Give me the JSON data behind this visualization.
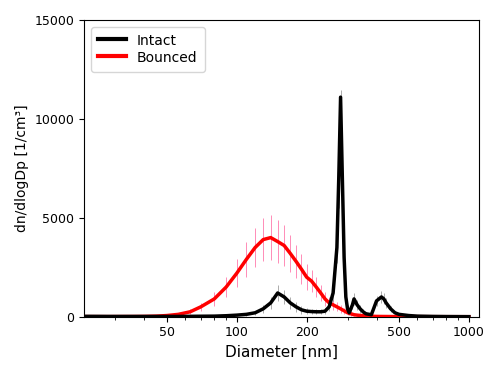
{
  "title": "",
  "xlabel": "Diameter [nm]",
  "ylabel": "dn/dlogDp [1/cm³]",
  "ylim": [
    0,
    15000
  ],
  "xlim": [
    22,
    1100
  ],
  "xticks": [
    50,
    100,
    200,
    500,
    1000
  ],
  "yticks": [
    0,
    5000,
    10000,
    15000
  ],
  "legend_entries": [
    "Intact",
    "Bounced"
  ],
  "line_colors": [
    "black",
    "red"
  ],
  "error_colors": [
    "#888888",
    "#ff80b0"
  ],
  "background_color": "#ffffff",
  "linewidth_intact": 2.5,
  "linewidth_bounced": 2.5,
  "intact_x": [
    22,
    25,
    28,
    32,
    36,
    40,
    45,
    50,
    56,
    63,
    70,
    80,
    90,
    100,
    110,
    120,
    130,
    140,
    150,
    160,
    170,
    180,
    190,
    200,
    210,
    220,
    230,
    240,
    250,
    260,
    270,
    275,
    280,
    285,
    290,
    295,
    300,
    305,
    310,
    315,
    320,
    330,
    340,
    350,
    360,
    380,
    400,
    420,
    430,
    440,
    460,
    480,
    500,
    550,
    600,
    700,
    800,
    1000
  ],
  "intact_y": [
    20,
    18,
    15,
    15,
    15,
    15,
    15,
    15,
    15,
    20,
    25,
    30,
    50,
    80,
    120,
    200,
    400,
    700,
    1200,
    1000,
    700,
    500,
    350,
    280,
    260,
    250,
    250,
    280,
    500,
    1200,
    3500,
    7000,
    11100,
    7000,
    3000,
    1000,
    400,
    200,
    400,
    600,
    900,
    600,
    400,
    250,
    150,
    100,
    800,
    1000,
    900,
    700,
    400,
    200,
    120,
    60,
    30,
    15,
    8,
    3
  ],
  "intact_err": [
    10,
    8,
    8,
    8,
    8,
    8,
    8,
    8,
    8,
    10,
    12,
    15,
    25,
    40,
    60,
    100,
    200,
    300,
    400,
    350,
    300,
    250,
    200,
    150,
    130,
    120,
    120,
    140,
    200,
    400,
    800,
    1500,
    350,
    1500,
    800,
    400,
    200,
    100,
    150,
    200,
    300,
    250,
    200,
    120,
    80,
    50,
    250,
    300,
    280,
    250,
    150,
    80,
    50,
    25,
    15,
    8,
    4,
    2
  ],
  "bounced_x": [
    22,
    25,
    28,
    32,
    36,
    40,
    45,
    50,
    56,
    63,
    70,
    80,
    90,
    100,
    110,
    120,
    130,
    140,
    150,
    160,
    170,
    180,
    190,
    200,
    210,
    220,
    230,
    240,
    250,
    260,
    270,
    280,
    290,
    300,
    310,
    320,
    330,
    350,
    380,
    400,
    500,
    700,
    1000
  ],
  "bounced_y": [
    5,
    5,
    5,
    8,
    10,
    15,
    30,
    60,
    120,
    250,
    500,
    900,
    1500,
    2200,
    2900,
    3500,
    3900,
    4000,
    3800,
    3600,
    3200,
    2800,
    2400,
    2000,
    1800,
    1500,
    1200,
    900,
    700,
    600,
    500,
    400,
    300,
    200,
    150,
    100,
    80,
    50,
    25,
    15,
    5,
    2,
    1
  ],
  "bounced_err": [
    3,
    3,
    3,
    5,
    6,
    8,
    15,
    30,
    60,
    120,
    200,
    350,
    500,
    700,
    900,
    1000,
    1100,
    1150,
    1100,
    1050,
    950,
    850,
    750,
    650,
    550,
    500,
    400,
    350,
    280,
    250,
    220,
    190,
    160,
    120,
    90,
    60,
    50,
    35,
    20,
    12,
    5,
    3,
    1
  ]
}
